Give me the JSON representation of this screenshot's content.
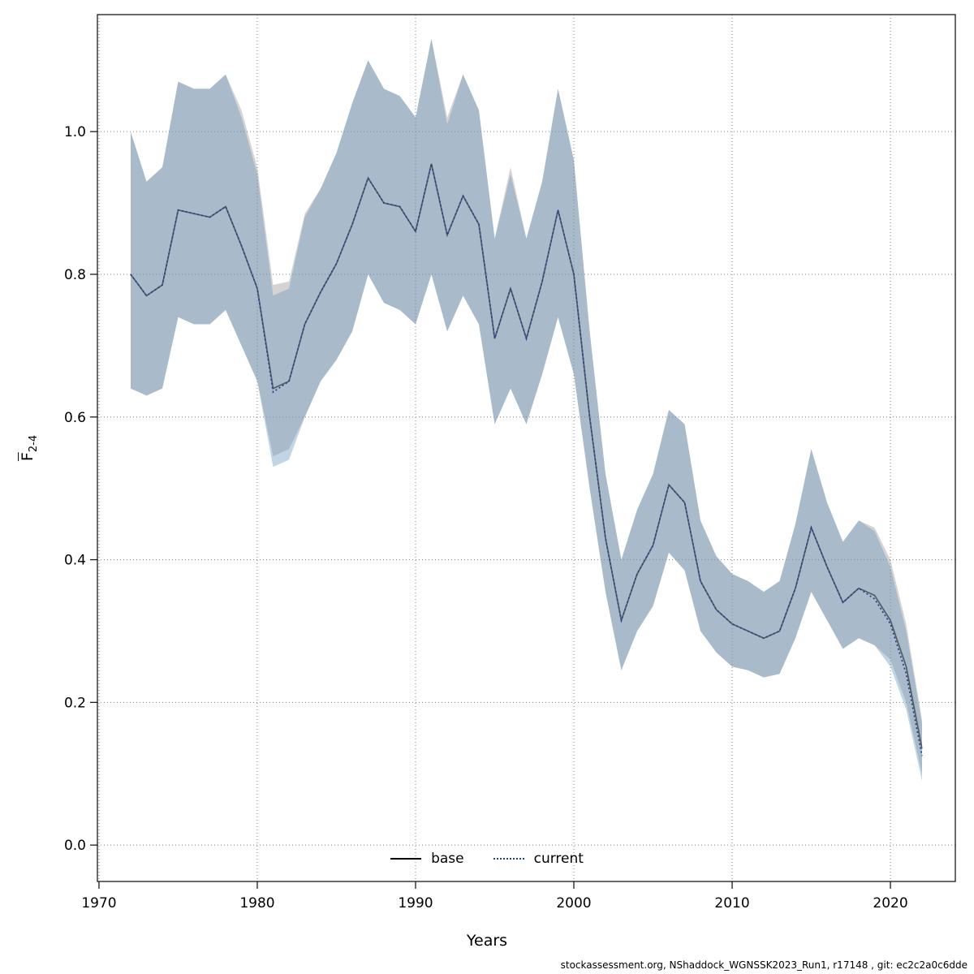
{
  "footer": {
    "text": "stockassessment.org, NShaddock_WGNSSK2023_Run1, r17148 , git: ec2c2a0c6dde"
  },
  "chart_data": {
    "type": "line",
    "title": "",
    "xlabel": "Years",
    "ylabel_main": "F",
    "ylabel_sub": "2-4",
    "x_ticks": [
      1970,
      1980,
      1990,
      2000,
      2010,
      2020
    ],
    "y_ticks": [
      0.0,
      0.2,
      0.4,
      0.6,
      0.8,
      1.0
    ],
    "xlim": [
      1969.9,
      2024.1
    ],
    "ylim": [
      -0.051,
      1.164
    ],
    "grid": "dotted",
    "legend_position": "bottom-center-inside",
    "years": [
      1972,
      1973,
      1974,
      1975,
      1976,
      1977,
      1978,
      1979,
      1980,
      1981,
      1982,
      1983,
      1984,
      1985,
      1986,
      1987,
      1988,
      1989,
      1990,
      1991,
      1992,
      1993,
      1994,
      1995,
      1996,
      1997,
      1998,
      1999,
      2000,
      2001,
      2002,
      2003,
      2004,
      2005,
      2006,
      2007,
      2008,
      2009,
      2010,
      2011,
      2012,
      2013,
      2014,
      2015,
      2016,
      2017,
      2018,
      2019,
      2020,
      2021,
      2022
    ],
    "series": [
      {
        "name": "base",
        "color": "#000000",
        "line": "solid",
        "band_color": "rgba(140,130,130,0.35)",
        "values": [
          0.8,
          0.77,
          0.785,
          0.89,
          0.885,
          0.88,
          0.895,
          0.84,
          0.78,
          0.64,
          0.65,
          0.73,
          0.775,
          0.815,
          0.87,
          0.935,
          0.9,
          0.895,
          0.86,
          0.955,
          0.855,
          0.91,
          0.87,
          0.71,
          0.78,
          0.71,
          0.79,
          0.89,
          0.8,
          0.6,
          0.43,
          0.315,
          0.38,
          0.42,
          0.505,
          0.48,
          0.37,
          0.33,
          0.31,
          0.3,
          0.29,
          0.3,
          0.36,
          0.445,
          0.39,
          0.34,
          0.36,
          0.35,
          0.315,
          0.25,
          0.135
        ],
        "ci_lower": [
          0.64,
          0.63,
          0.64,
          0.74,
          0.73,
          0.73,
          0.75,
          0.7,
          0.65,
          0.545,
          0.555,
          0.6,
          0.65,
          0.68,
          0.72,
          0.8,
          0.76,
          0.75,
          0.73,
          0.8,
          0.72,
          0.77,
          0.73,
          0.59,
          0.64,
          0.59,
          0.66,
          0.74,
          0.66,
          0.5,
          0.355,
          0.245,
          0.3,
          0.335,
          0.41,
          0.385,
          0.3,
          0.27,
          0.25,
          0.245,
          0.235,
          0.24,
          0.29,
          0.355,
          0.315,
          0.275,
          0.29,
          0.28,
          0.26,
          0.2,
          0.1
        ],
        "ci_upper": [
          1.0,
          0.93,
          0.95,
          1.07,
          1.06,
          1.06,
          1.08,
          1.03,
          0.95,
          0.785,
          0.79,
          0.885,
          0.92,
          0.97,
          1.04,
          1.1,
          1.06,
          1.05,
          1.02,
          1.13,
          1.02,
          1.08,
          1.03,
          0.85,
          0.95,
          0.85,
          0.93,
          1.06,
          0.96,
          0.72,
          0.52,
          0.4,
          0.47,
          0.52,
          0.61,
          0.59,
          0.455,
          0.405,
          0.38,
          0.37,
          0.355,
          0.37,
          0.45,
          0.555,
          0.48,
          0.425,
          0.455,
          0.445,
          0.4,
          0.31,
          0.175
        ]
      },
      {
        "name": "current",
        "color": "#27408B",
        "line": "dotted",
        "band_color": "rgba(100,150,190,0.40)",
        "values": [
          0.8,
          0.77,
          0.785,
          0.89,
          0.885,
          0.88,
          0.895,
          0.84,
          0.78,
          0.635,
          0.65,
          0.73,
          0.775,
          0.815,
          0.87,
          0.935,
          0.9,
          0.895,
          0.86,
          0.955,
          0.855,
          0.91,
          0.87,
          0.71,
          0.78,
          0.71,
          0.79,
          0.89,
          0.8,
          0.6,
          0.43,
          0.315,
          0.38,
          0.42,
          0.505,
          0.48,
          0.37,
          0.33,
          0.31,
          0.3,
          0.29,
          0.3,
          0.36,
          0.445,
          0.39,
          0.34,
          0.36,
          0.345,
          0.31,
          0.24,
          0.125
        ],
        "ci_lower": [
          0.64,
          0.63,
          0.64,
          0.74,
          0.73,
          0.73,
          0.75,
          0.7,
          0.65,
          0.53,
          0.54,
          0.6,
          0.65,
          0.68,
          0.72,
          0.8,
          0.76,
          0.75,
          0.73,
          0.8,
          0.72,
          0.77,
          0.73,
          0.59,
          0.64,
          0.59,
          0.66,
          0.74,
          0.66,
          0.5,
          0.355,
          0.245,
          0.3,
          0.335,
          0.41,
          0.385,
          0.3,
          0.27,
          0.25,
          0.245,
          0.235,
          0.24,
          0.29,
          0.355,
          0.315,
          0.275,
          0.29,
          0.28,
          0.25,
          0.19,
          0.09
        ],
        "ci_upper": [
          1.0,
          0.93,
          0.95,
          1.07,
          1.06,
          1.06,
          1.08,
          1.02,
          0.94,
          0.77,
          0.78,
          0.88,
          0.92,
          0.97,
          1.04,
          1.1,
          1.06,
          1.05,
          1.02,
          1.13,
          1.01,
          1.08,
          1.03,
          0.85,
          0.94,
          0.85,
          0.93,
          1.06,
          0.96,
          0.72,
          0.52,
          0.4,
          0.47,
          0.52,
          0.61,
          0.59,
          0.455,
          0.405,
          0.38,
          0.37,
          0.355,
          0.37,
          0.45,
          0.555,
          0.48,
          0.425,
          0.455,
          0.44,
          0.39,
          0.3,
          0.17
        ]
      }
    ]
  }
}
